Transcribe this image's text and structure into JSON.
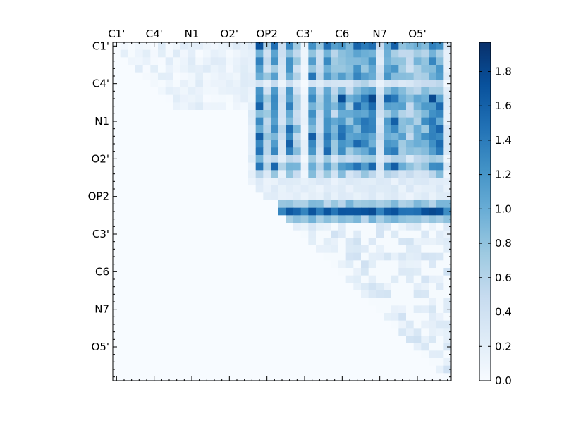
{
  "chart_data": {
    "type": "heatmap",
    "title": "",
    "xlabel": "",
    "ylabel": "",
    "n": 45,
    "row_tick_labels": [
      "C1'",
      "C4'",
      "N1",
      "O2'",
      "OP2",
      "C3'",
      "C6",
      "N7",
      "O5'"
    ],
    "col_tick_labels": [
      "C1'",
      "C4'",
      "N1",
      "O2'",
      "OP2",
      "C3'",
      "C6",
      "N7",
      "O5'"
    ],
    "tick_interval": 5,
    "colormap": "Blues",
    "colorbar": {
      "min": 0.0,
      "max": 1.97,
      "ticks": [
        "0.0",
        "0.2",
        "0.4",
        "0.6",
        "0.8",
        "1.0",
        "1.2",
        "1.4",
        "1.6",
        "1.8"
      ]
    },
    "bands": [
      {
        "region": "row 22 (OP2), cols 22-44",
        "value_range": [
          1.0,
          1.97
        ],
        "note": "strongest band"
      },
      {
        "region": "rows 21 and 23, cols 22-44",
        "value_range": [
          0.6,
          1.0
        ]
      },
      {
        "region": "rows 0-17, cols 19-44",
        "value_range": [
          0.1,
          1.97
        ],
        "note": "striped block, peaks near 1.9 at cols 32-33 and 23"
      },
      {
        "region": "rows 0-8, cols 1-18",
        "value_range": [
          0.0,
          0.3
        ],
        "note": "faint upper triangle"
      },
      {
        "region": "rows 24-44, cols 24-44",
        "value_range": [
          0.0,
          0.45
        ],
        "note": "faint lower-right triangle"
      }
    ]
  }
}
